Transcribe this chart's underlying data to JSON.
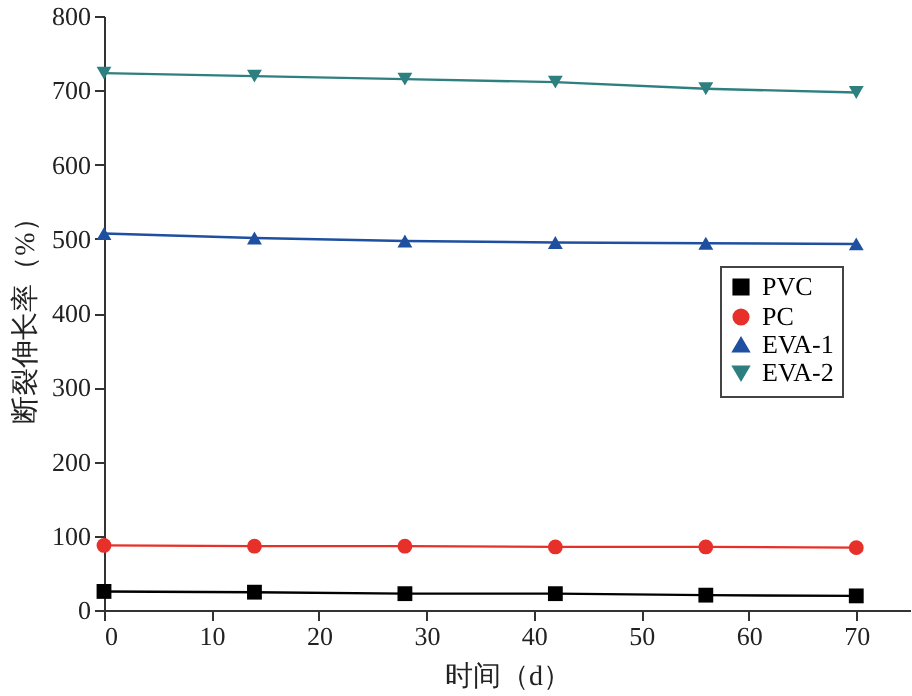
{
  "chart_data": {
    "type": "line",
    "xlabel": "时间（d）",
    "ylabel": "断裂伸长率（%）",
    "x": [
      0,
      14,
      28,
      42,
      56,
      70
    ],
    "series": [
      {
        "name": "PVC",
        "color": "#000000",
        "marker": "square",
        "values": [
          25,
          24,
          22,
          22,
          20,
          19
        ]
      },
      {
        "name": "PC",
        "color": "#e8302a",
        "marker": "circle",
        "values": [
          87,
          86,
          86,
          85,
          85,
          84
        ]
      },
      {
        "name": "EVA-1",
        "color": "#1f4fa0",
        "marker": "triangle",
        "values": [
          507,
          501,
          497,
          495,
          494,
          493
        ]
      },
      {
        "name": "EVA-2",
        "color": "#2e7f7f",
        "marker": "triangle-down",
        "values": [
          723,
          719,
          715,
          711,
          702,
          697
        ]
      }
    ],
    "xlim": [
      0,
      75
    ],
    "xticks": [
      0,
      10,
      20,
      30,
      40,
      50,
      60,
      70
    ],
    "ylim": [
      0,
      800
    ],
    "yticks": [
      0,
      100,
      200,
      300,
      400,
      500,
      600,
      700,
      800
    ],
    "grid": false,
    "legend": "right",
    "line_style": "solid"
  }
}
